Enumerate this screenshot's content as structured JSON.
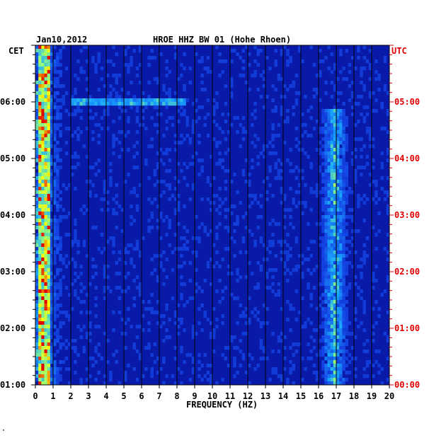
{
  "chart_data": {
    "type": "heatmap",
    "title": "HROE HHZ BW 01 (Hohe Rhoen)",
    "date": "Jan10,2012",
    "xlabel": "FREQUENCY (HZ)",
    "x_ticks": [
      "0",
      "1",
      "2",
      "3",
      "4",
      "5",
      "6",
      "7",
      "8",
      "9",
      "10",
      "11",
      "12",
      "13",
      "14",
      "15",
      "16",
      "17",
      "18",
      "19",
      "20"
    ],
    "xlim": [
      0,
      20
    ],
    "left_axis_title": "CET",
    "right_axis_title": "UTC",
    "left_ticks": [
      "06:00",
      "05:00",
      "04:00",
      "03:00",
      "02:00",
      "01:00"
    ],
    "right_ticks": [
      "05:00",
      "04:00",
      "03:00",
      "02:00",
      "01:00",
      "00:00"
    ],
    "time_range_utc_hours": [
      0,
      6
    ],
    "colors": {
      "background": "#0a1aa8",
      "low": "#0b2bd0",
      "mid": "#18a8ff",
      "high": "#ffff00",
      "peak": "#e00000",
      "utc_label": "#e00000"
    },
    "features": [
      {
        "name": "low-frequency band",
        "freq_hz": [
          0.1,
          0.9
        ],
        "intensity": "high",
        "time_utc": [
          0,
          6
        ]
      },
      {
        "name": "band near 17 Hz",
        "freq_hz": [
          16.2,
          17.6
        ],
        "intensity": "medium",
        "time_utc": [
          0,
          4.9
        ]
      },
      {
        "name": "broadband line",
        "freq_hz": [
          2.0,
          8.5
        ],
        "intensity": "medium",
        "time_utc_at": 5.0
      }
    ],
    "footnote": "\""
  }
}
